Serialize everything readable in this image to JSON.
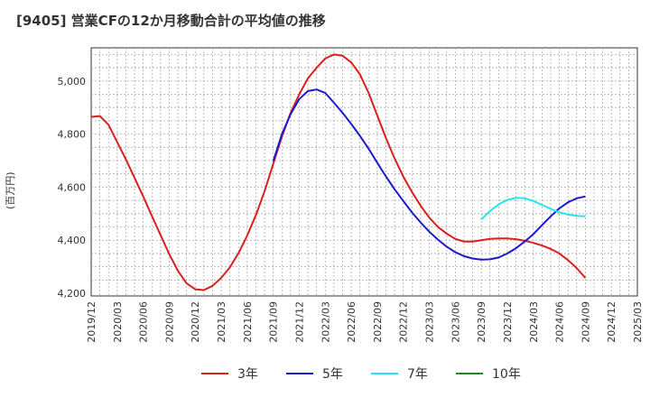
{
  "title": "[9405]  営業CFの12か月移動合計の平均値の推移",
  "ylabel": "(百万円)",
  "chart_data": {
    "type": "line",
    "x_ticks": [
      "2019/12",
      "2020/03",
      "2020/06",
      "2020/09",
      "2020/12",
      "2021/03",
      "2021/06",
      "2021/09",
      "2021/12",
      "2022/03",
      "2022/06",
      "2022/09",
      "2022/12",
      "2023/03",
      "2023/06",
      "2023/09",
      "2023/12",
      "2024/03",
      "2024/06",
      "2024/09",
      "2024/12",
      "2025/03"
    ],
    "y_ticks": [
      "4,200",
      "4,400",
      "4,600",
      "4,800",
      "5,000"
    ],
    "ylim": [
      4190,
      5125
    ],
    "grid": true,
    "legend_position": "bottom",
    "series": [
      {
        "name": "3年",
        "color": "#dd1e1e",
        "x": [
          "2019/12",
          "2020/01",
          "2020/02",
          "2020/03",
          "2020/04",
          "2020/05",
          "2020/06",
          "2020/07",
          "2020/08",
          "2020/09",
          "2020/10",
          "2020/11",
          "2020/12",
          "2021/01",
          "2021/02",
          "2021/03",
          "2021/04",
          "2021/05",
          "2021/06",
          "2021/07",
          "2021/08",
          "2021/09",
          "2021/10",
          "2021/11",
          "2021/12",
          "2022/01",
          "2022/02",
          "2022/03",
          "2022/04",
          "2022/05",
          "2022/06",
          "2022/07",
          "2022/08",
          "2022/09",
          "2022/10",
          "2022/11",
          "2022/12",
          "2023/01",
          "2023/02",
          "2023/03",
          "2023/04",
          "2023/05",
          "2023/06",
          "2023/07",
          "2023/08",
          "2023/09",
          "2023/10",
          "2023/11",
          "2023/12",
          "2024/01",
          "2024/02",
          "2024/03",
          "2024/04",
          "2024/05",
          "2024/06",
          "2024/07",
          "2024/08",
          "2024/09"
        ],
        "values": [
          4865,
          4868,
          4835,
          4770,
          4705,
          4635,
          4565,
          4492,
          4420,
          4348,
          4285,
          4238,
          4215,
          4212,
          4228,
          4258,
          4298,
          4352,
          4418,
          4495,
          4585,
          4688,
          4790,
          4880,
          4950,
          5010,
          5050,
          5085,
          5100,
          5095,
          5070,
          5025,
          4955,
          4870,
          4785,
          4708,
          4640,
          4582,
          4530,
          4485,
          4450,
          4425,
          4405,
          4395,
          4395,
          4400,
          4405,
          4407,
          4407,
          4404,
          4398,
          4390,
          4380,
          4367,
          4350,
          4325,
          4295,
          4258
        ]
      },
      {
        "name": "5年",
        "color": "#1a1acc",
        "x": [
          "2021/09",
          "2021/10",
          "2021/11",
          "2021/12",
          "2022/01",
          "2022/02",
          "2022/03",
          "2022/04",
          "2022/05",
          "2022/06",
          "2022/07",
          "2022/08",
          "2022/09",
          "2022/10",
          "2022/11",
          "2022/12",
          "2023/01",
          "2023/02",
          "2023/03",
          "2023/04",
          "2023/05",
          "2023/06",
          "2023/07",
          "2023/08",
          "2023/09",
          "2023/10",
          "2023/11",
          "2023/12",
          "2024/01",
          "2024/02",
          "2024/03",
          "2024/04",
          "2024/05",
          "2024/06",
          "2024/07",
          "2024/08",
          "2024/09"
        ],
        "values": [
          4698,
          4800,
          4875,
          4932,
          4962,
          4968,
          4955,
          4918,
          4880,
          4838,
          4793,
          4745,
          4692,
          4640,
          4592,
          4548,
          4505,
          4467,
          4432,
          4402,
          4376,
          4355,
          4340,
          4331,
          4327,
          4328,
          4335,
          4350,
          4370,
          4395,
          4423,
          4457,
          4490,
          4520,
          4543,
          4558,
          4565
        ]
      },
      {
        "name": "7年",
        "color": "#22e6ee",
        "x": [
          "2023/09",
          "2023/10",
          "2023/11",
          "2023/12",
          "2024/01",
          "2024/02",
          "2024/03",
          "2024/04",
          "2024/05",
          "2024/06",
          "2024/07",
          "2024/08",
          "2024/09"
        ],
        "values": [
          4478,
          4510,
          4535,
          4552,
          4560,
          4558,
          4548,
          4533,
          4518,
          4505,
          4497,
          4492,
          4490
        ]
      },
      {
        "name": "10年",
        "color": "#228b22",
        "x": [],
        "values": []
      }
    ]
  }
}
